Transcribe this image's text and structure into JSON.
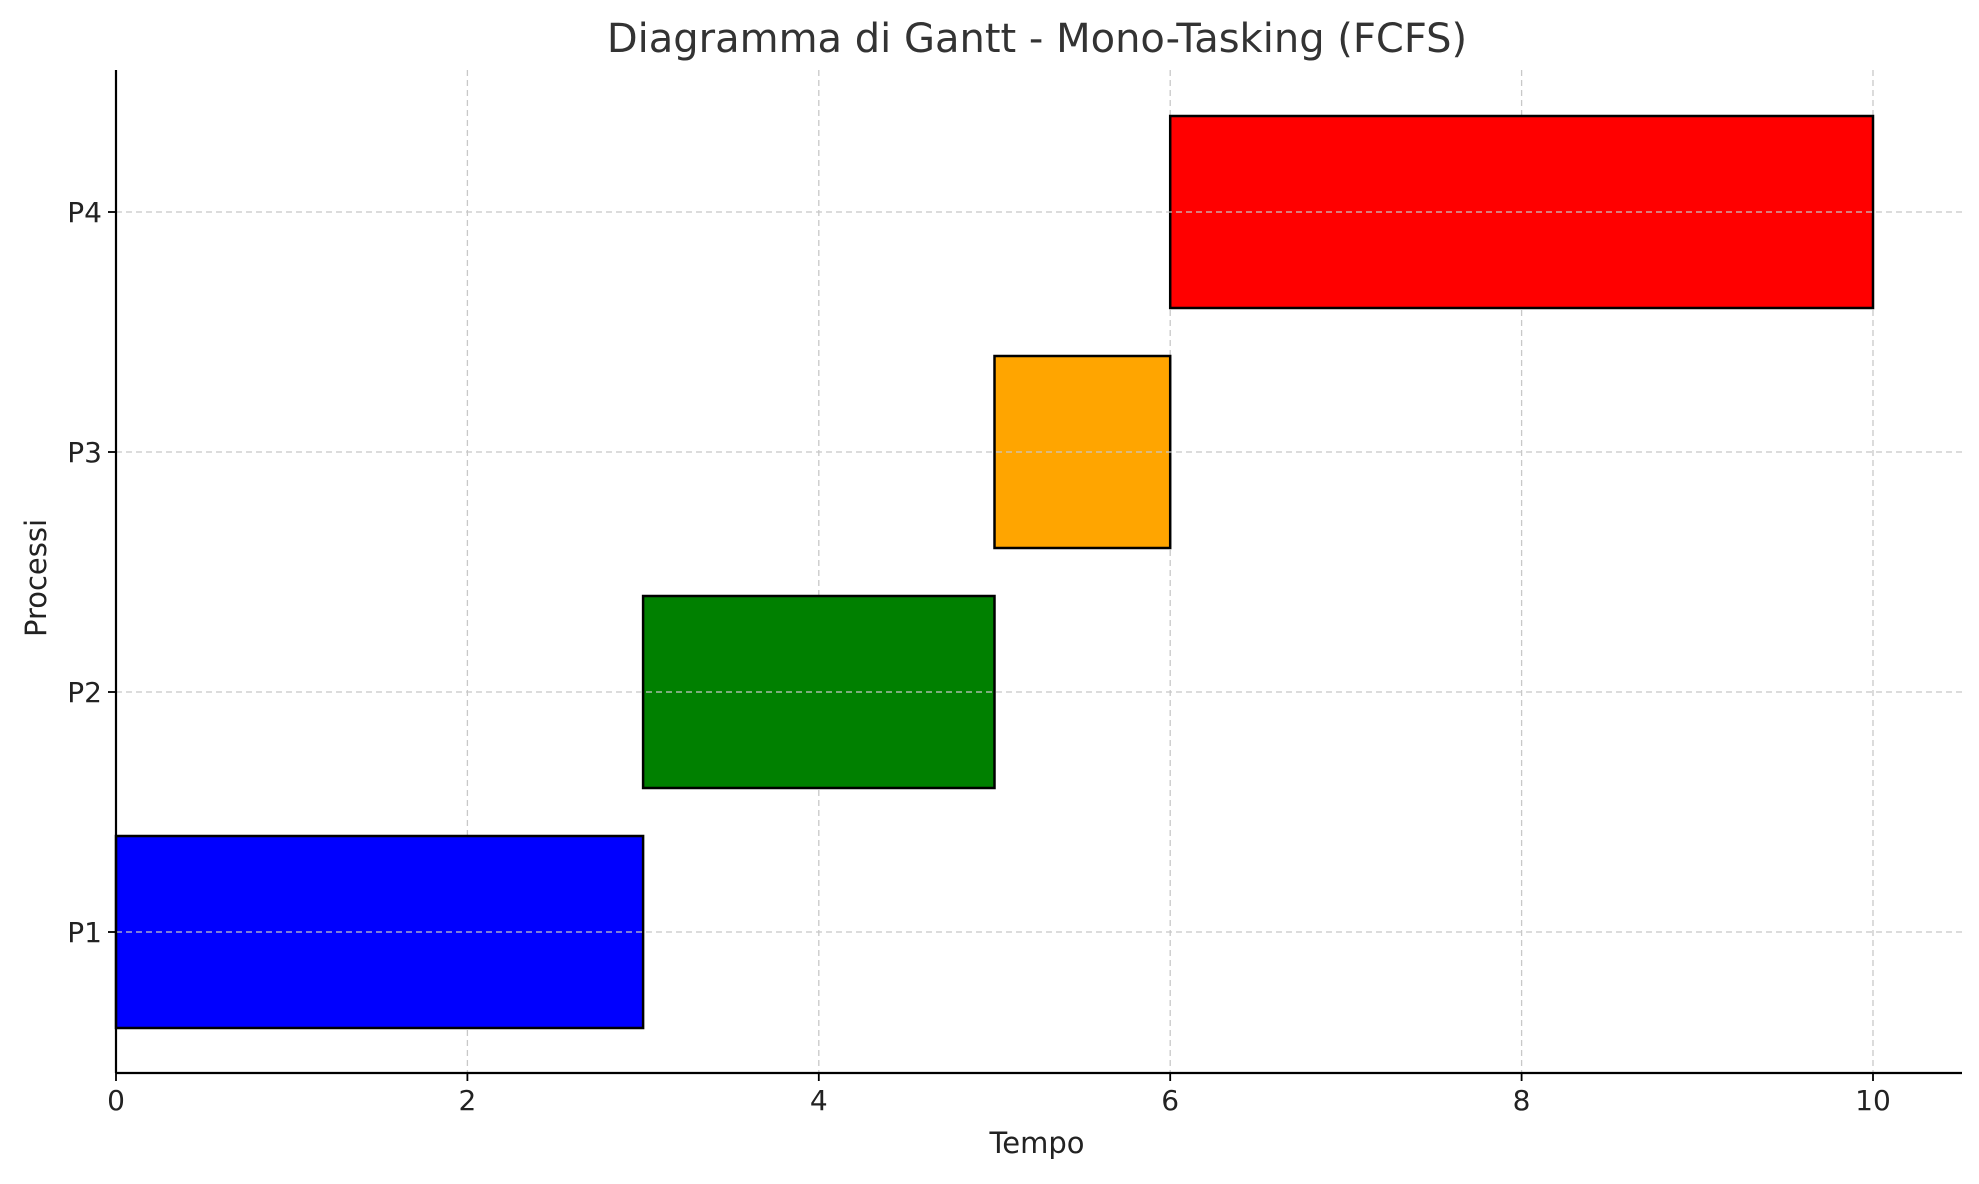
{
  "chart_data": {
    "type": "gantt",
    "title": "Diagramma di Gantt - Mono-Tasking (FCFS)",
    "xlabel": "Tempo",
    "ylabel": "Processi",
    "xlim": [
      0,
      10.5
    ],
    "xticks": [
      0,
      2,
      4,
      6,
      8,
      10
    ],
    "categories": [
      "P1",
      "P2",
      "P3",
      "P4"
    ],
    "bars": [
      {
        "process": "P1",
        "start": 0,
        "duration": 3,
        "end": 3,
        "color": "#0000ff"
      },
      {
        "process": "P2",
        "start": 3,
        "duration": 2,
        "end": 5,
        "color": "#008000"
      },
      {
        "process": "P3",
        "start": 5,
        "duration": 1,
        "end": 6,
        "color": "#ffa500"
      },
      {
        "process": "P4",
        "start": 6,
        "duration": 4,
        "end": 10,
        "color": "#ff0000"
      }
    ],
    "grid": true,
    "grid_style": "dashed",
    "legend": "none"
  }
}
